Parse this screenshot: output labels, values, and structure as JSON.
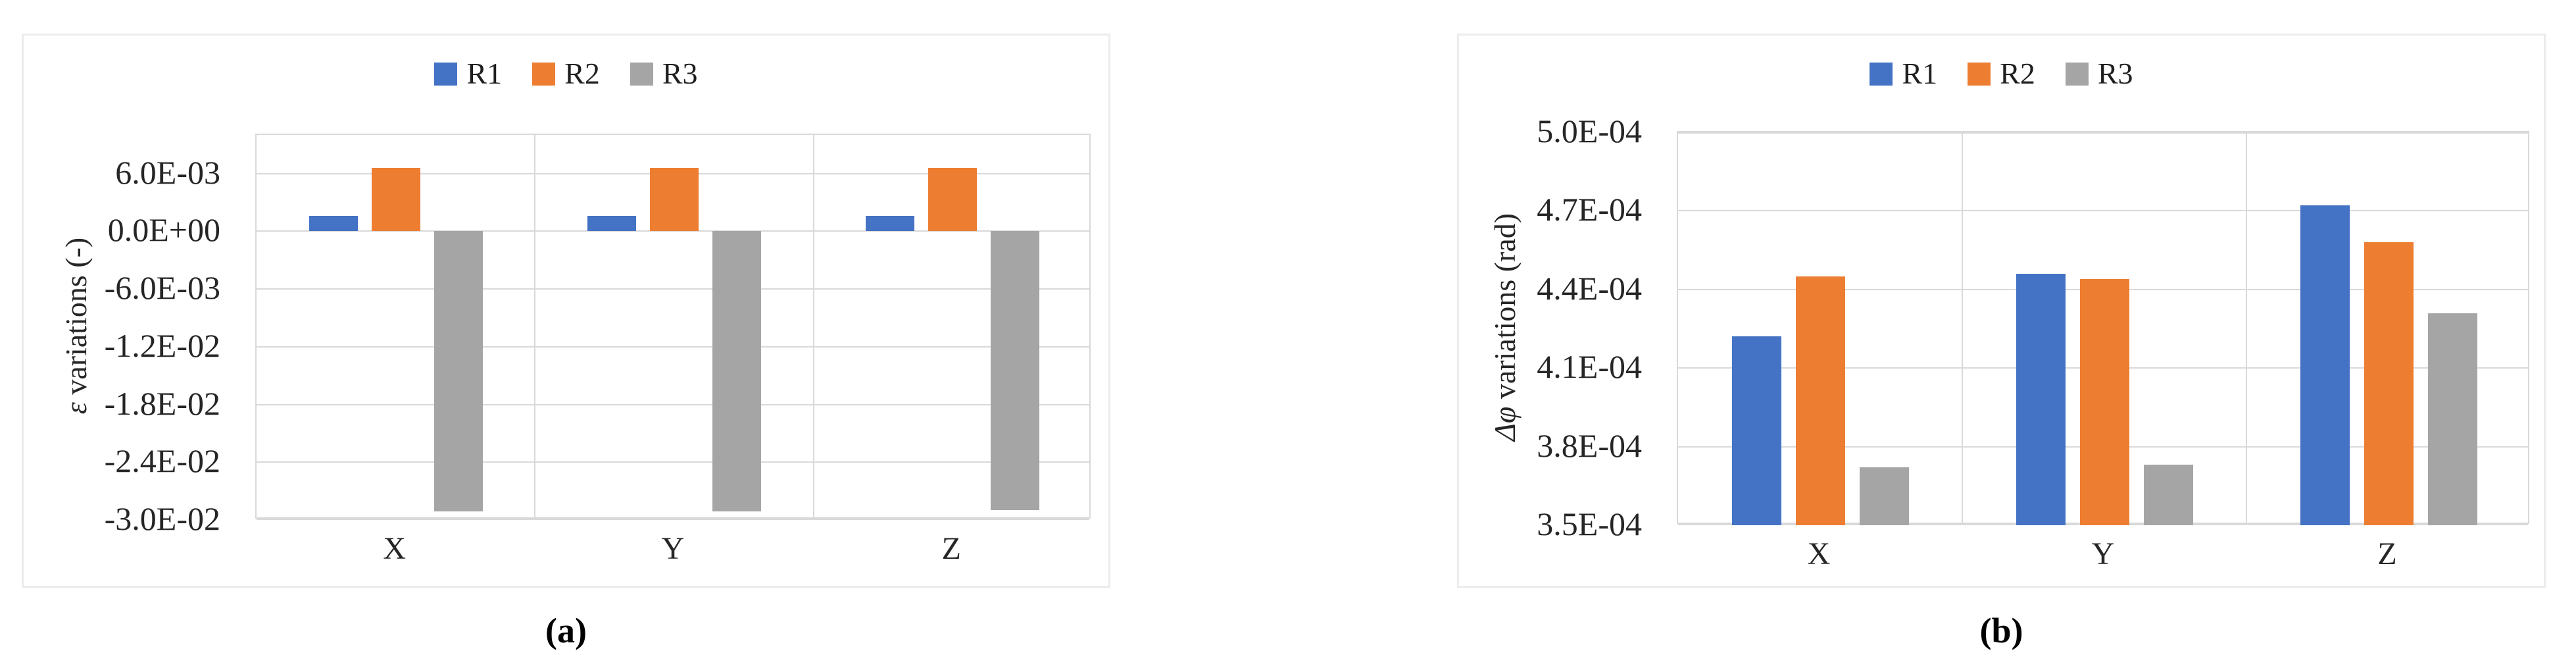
{
  "figure": {
    "panels": [
      {
        "caption": "(a)",
        "legend": [
          {
            "name": "R1",
            "color": "#4472C4"
          },
          {
            "name": "R2",
            "color": "#ED7D31"
          },
          {
            "name": "R3",
            "color": "#A5A5A5"
          }
        ]
      },
      {
        "caption": "(b)",
        "legend": [
          {
            "name": "R1",
            "color": "#4472C4"
          },
          {
            "name": "R2",
            "color": "#ED7D31"
          },
          {
            "name": "R3",
            "color": "#A5A5A5"
          }
        ]
      }
    ],
    "colors": {
      "series_blue": "#4472C4",
      "series_orange": "#ED7D31",
      "series_gray": "#A5A5A5",
      "gridline": "#D9D9D9",
      "panel_border": "#ECECEC",
      "text": "#262626"
    }
  },
  "chart_data": [
    {
      "type": "bar",
      "title": "",
      "categories": [
        "X",
        "Y",
        "Z"
      ],
      "series": [
        {
          "name": "R1",
          "color": "#4472C4",
          "values": [
            0.0016,
            0.0016,
            0.0016
          ]
        },
        {
          "name": "R2",
          "color": "#ED7D31",
          "values": [
            0.0066,
            0.0066,
            0.0066
          ]
        },
        {
          "name": "R3",
          "color": "#A5A5A5",
          "values": [
            -0.0291,
            -0.0291,
            -0.029
          ]
        }
      ],
      "xlabel": "",
      "ylabel_symbol": "ε",
      "ylabel_rest": " variations (-)",
      "ylim": [
        -0.03,
        0.01
      ],
      "grid": true,
      "legend_position": "top-center",
      "yticks": [
        {
          "value": 0.006,
          "label": "6.0E-03"
        },
        {
          "value": 0.0,
          "label": "0.0E+00"
        },
        {
          "value": -0.006,
          "label": "-6.0E-03"
        },
        {
          "value": -0.012,
          "label": "-1.2E-02"
        },
        {
          "value": -0.018,
          "label": "-1.8E-02"
        },
        {
          "value": -0.024,
          "label": "-2.4E-02"
        },
        {
          "value": -0.03,
          "label": "-3.0E-02"
        }
      ]
    },
    {
      "type": "bar",
      "title": "",
      "categories": [
        "X",
        "Y",
        "Z"
      ],
      "series": [
        {
          "name": "R1",
          "color": "#4472C4",
          "values": [
            0.000422,
            0.000446,
            0.000472
          ]
        },
        {
          "name": "R2",
          "color": "#ED7D31",
          "values": [
            0.000445,
            0.000444,
            0.000458
          ]
        },
        {
          "name": "R3",
          "color": "#A5A5A5",
          "values": [
            0.000372,
            0.000373,
            0.000431
          ]
        }
      ],
      "xlabel": "",
      "ylabel_symbol": "Δφ",
      "ylabel_rest": " variations (rad)",
      "ylim": [
        0.00035,
        0.0005
      ],
      "grid": true,
      "legend_position": "top-center",
      "yticks": [
        {
          "value": 0.0005,
          "label": "5.0E-04"
        },
        {
          "value": 0.00047,
          "label": "4.7E-04"
        },
        {
          "value": 0.00044,
          "label": "4.4E-04"
        },
        {
          "value": 0.00041,
          "label": "4.1E-04"
        },
        {
          "value": 0.00038,
          "label": "3.8E-04"
        },
        {
          "value": 0.00035,
          "label": "3.5E-04"
        }
      ]
    }
  ]
}
